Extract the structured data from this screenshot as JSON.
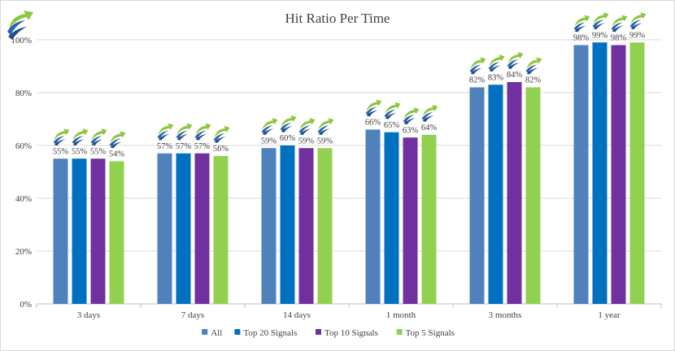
{
  "colors": {
    "series": [
      "#4f81bd",
      "#0070c0",
      "#7030a0",
      "#92d050"
    ],
    "grid": "#d9d9d9",
    "text": "#404040"
  },
  "icons": {
    "logo": "blue-green-arrow-logo-icon",
    "data_label_badge": "blue-green-arrow-logo-icon"
  },
  "chart_data": {
    "type": "bar",
    "title": "Hit  Ratio Per Time",
    "categories": [
      "3 days",
      "7 days",
      "14 days",
      "1 month",
      "3 months",
      "1 year"
    ],
    "series": [
      {
        "name": "All",
        "values": [
          55,
          57,
          59,
          66,
          82,
          98
        ]
      },
      {
        "name": "Top 20 Signals",
        "values": [
          55,
          57,
          60,
          65,
          83,
          99
        ]
      },
      {
        "name": "Top 10 Signals",
        "values": [
          55,
          57,
          59,
          63,
          84,
          98
        ]
      },
      {
        "name": "Top 5 Signals",
        "values": [
          54,
          56,
          59,
          64,
          82,
          99
        ]
      }
    ],
    "ylim": [
      0,
      100
    ],
    "yticks": [
      0,
      20,
      40,
      60,
      80,
      100
    ],
    "ytick_labels": [
      "0%",
      "20%",
      "40%",
      "60%",
      "80%",
      "100%"
    ],
    "value_suffix": "%",
    "grid": true,
    "legend": "bottom",
    "data_labels": true
  }
}
